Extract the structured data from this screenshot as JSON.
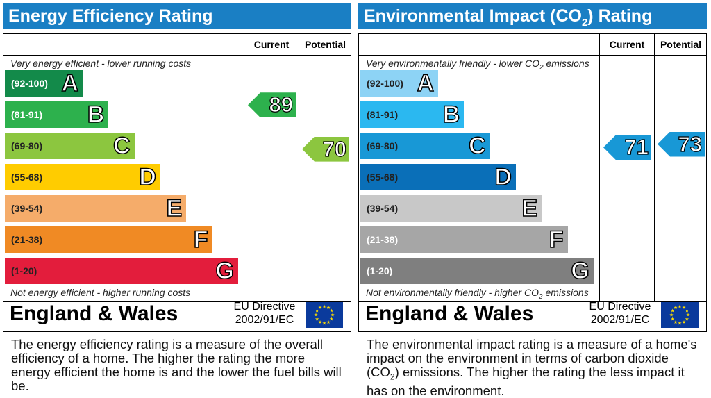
{
  "chart_data": [
    {
      "type": "bar",
      "title": "Energy Efficiency Rating",
      "column_headers": {
        "current": "Current",
        "potential": "Potential"
      },
      "top_note": "Very energy efficient - lower running costs",
      "bottom_note": "Not energy efficient - higher running costs",
      "bands": [
        {
          "range": "(92-100)",
          "letter": "A",
          "color": "#138a4a",
          "range_color": "#ffffff"
        },
        {
          "range": "(81-91)",
          "letter": "B",
          "color": "#2db14d",
          "range_color": "#ffffff"
        },
        {
          "range": "(69-80)",
          "letter": "C",
          "color": "#8cc63f",
          "range_color": "#222222"
        },
        {
          "range": "(55-68)",
          "letter": "D",
          "color": "#ffcc00",
          "range_color": "#222222"
        },
        {
          "range": "(39-54)",
          "letter": "E",
          "color": "#f5ac6a",
          "range_color": "#222222"
        },
        {
          "range": "(21-38)",
          "letter": "F",
          "color": "#f08a24",
          "range_color": "#222222"
        },
        {
          "range": "(1-20)",
          "letter": "G",
          "color": "#e31d3c",
          "range_color": "#222222"
        }
      ],
      "current": {
        "value": 89,
        "band": "B",
        "color": "#2db14d"
      },
      "potential": {
        "value": 70,
        "band": "C",
        "color": "#8cc63f"
      },
      "footer": {
        "region": "England & Wales",
        "directive_line1": "EU Directive",
        "directive_line2": "2002/91/EC"
      },
      "description": "The energy efficiency rating is a measure of the overall efficiency of a home. The higher the rating the more energy efficient the home is and the lower the fuel bills will be."
    },
    {
      "type": "bar",
      "title": "Environmental Impact (CO2) Rating",
      "column_headers": {
        "current": "Current",
        "potential": "Potential"
      },
      "top_note": "Very environmentally friendly - lower CO2 emissions",
      "bottom_note": "Not environmentally friendly - higher CO2 emissions",
      "bands": [
        {
          "range": "(92-100)",
          "letter": "A",
          "color": "#8dd3f5",
          "range_color": "#222222"
        },
        {
          "range": "(81-91)",
          "letter": "B",
          "color": "#2bb8f0",
          "range_color": "#222222"
        },
        {
          "range": "(69-80)",
          "letter": "C",
          "color": "#1898d6",
          "range_color": "#222222"
        },
        {
          "range": "(55-68)",
          "letter": "D",
          "color": "#0a6fb8",
          "range_color": "#222222"
        },
        {
          "range": "(39-54)",
          "letter": "E",
          "color": "#c8c8c8",
          "range_color": "#222222"
        },
        {
          "range": "(21-38)",
          "letter": "F",
          "color": "#a6a6a6",
          "range_color": "#ffffff"
        },
        {
          "range": "(1-20)",
          "letter": "G",
          "color": "#7f7f7f",
          "range_color": "#ffffff"
        }
      ],
      "current": {
        "value": 71,
        "band": "C",
        "color": "#1898d6"
      },
      "potential": {
        "value": 73,
        "band": "C",
        "color": "#1898d6"
      },
      "footer": {
        "region": "England & Wales",
        "directive_line1": "EU Directive",
        "directive_line2": "2002/91/EC"
      },
      "description": "The environmental impact rating is a measure of a home's impact on the environment in terms of carbon dioxide (CO2) emissions. The higher the rating the less impact it has on the environment."
    }
  ],
  "colors": {
    "header_bg": "#1a7fc4",
    "flag_bg": "#0a3a9c",
    "flag_stars": "#ffdd00"
  }
}
